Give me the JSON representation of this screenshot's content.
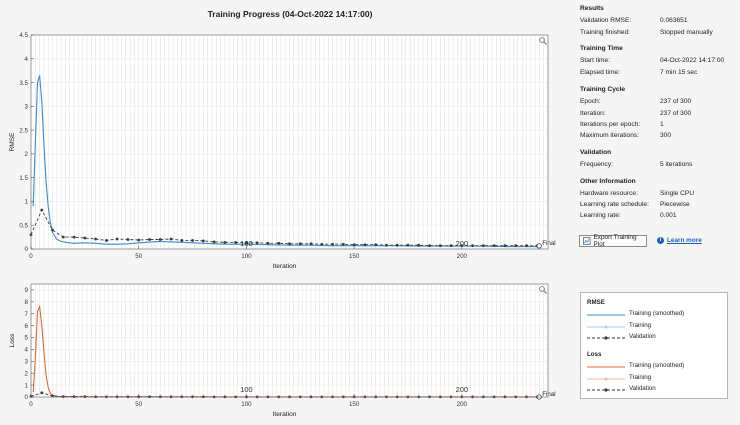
{
  "title": "Training Progress (04-Oct-2022 14:17:00)",
  "colors": {
    "training": "#3b8fd1",
    "training_raw": "#a9cde9",
    "validation": "#3a3a3a",
    "loss": "#e06a3b",
    "loss_raw": "#f3b8a0"
  },
  "icons": {
    "export": "export-plot-icon",
    "help": "help-icon",
    "zoom": "magnifier-icon"
  },
  "panel": {
    "results": {
      "title": "Results",
      "rows": [
        {
          "label": "Validation RMSE:",
          "value": "0.063651"
        },
        {
          "label": "Training finished:",
          "value": "Stopped manually"
        }
      ]
    },
    "time": {
      "title": "Training Time",
      "rows": [
        {
          "label": "Start time:",
          "value": "04-Oct-2022 14:17:00"
        },
        {
          "label": "Elapsed time:",
          "value": "7 min 15 sec"
        }
      ]
    },
    "cycle": {
      "title": "Training Cycle",
      "rows": [
        {
          "label": "Epoch:",
          "value": "237 of 300"
        },
        {
          "label": "Iteration:",
          "value": "237 of 300"
        },
        {
          "label": "Iterations per epoch:",
          "value": "1"
        },
        {
          "label": "Maximum iterations:",
          "value": "300"
        }
      ]
    },
    "validation": {
      "title": "Validation",
      "rows": [
        {
          "label": "Frequency:",
          "value": "5 iterations"
        }
      ]
    },
    "other": {
      "title": "Other Information",
      "rows": [
        {
          "label": "Hardware resource:",
          "value": "Single CPU"
        },
        {
          "label": "Learning rate schedule:",
          "value": "Piecewise"
        },
        {
          "label": "Learning rate:",
          "value": "0.001"
        }
      ]
    },
    "export_label": "Export Training Plot",
    "learn_more": "Learn more"
  },
  "legend": {
    "rmse_title": "RMSE",
    "loss_title": "Loss",
    "training_smoothed": "Training (smoothed)",
    "training": "Training",
    "validation": "Validation"
  },
  "chart_data": [
    {
      "type": "line",
      "ylabel": "RMSE",
      "xlabel": "Iteration",
      "xlim": [
        0,
        240
      ],
      "ylim": [
        0,
        4.5
      ],
      "x_ticks": [
        0,
        50,
        100,
        150,
        200
      ],
      "y_ticks": [
        0,
        0.5,
        1,
        1.5,
        2,
        2.5,
        3,
        3.5,
        4,
        4.5
      ],
      "epoch_markers": [
        {
          "x": 100,
          "label": "100"
        },
        {
          "x": 200,
          "label": "200"
        }
      ],
      "final_label": "Final",
      "grid": true,
      "series": [
        {
          "name": "Training (smoothed)",
          "x": [
            1,
            2,
            3,
            4,
            5,
            6,
            7,
            8,
            9,
            10,
            12,
            14,
            16,
            18,
            20,
            25,
            30,
            35,
            40,
            45,
            50,
            60,
            70,
            80,
            90,
            100,
            110,
            120,
            130,
            140,
            150,
            160,
            170,
            180,
            190,
            200,
            210,
            220,
            230,
            237
          ],
          "values": [
            0.9,
            2.2,
            3.5,
            3.65,
            3.1,
            2.2,
            1.4,
            0.9,
            0.55,
            0.35,
            0.2,
            0.16,
            0.14,
            0.13,
            0.12,
            0.13,
            0.12,
            0.1,
            0.1,
            0.11,
            0.13,
            0.16,
            0.14,
            0.12,
            0.1,
            0.1,
            0.09,
            0.08,
            0.08,
            0.07,
            0.07,
            0.07,
            0.07,
            0.06,
            0.06,
            0.06,
            0.06,
            0.05,
            0.05,
            0.05
          ]
        },
        {
          "name": "Validation",
          "x": [
            0,
            5,
            10,
            15,
            20,
            25,
            30,
            35,
            40,
            45,
            50,
            55,
            60,
            65,
            70,
            75,
            80,
            85,
            90,
            95,
            100,
            105,
            110,
            115,
            120,
            125,
            130,
            135,
            140,
            145,
            150,
            155,
            160,
            165,
            170,
            175,
            180,
            185,
            190,
            195,
            200,
            205,
            210,
            215,
            220,
            225,
            230,
            235
          ],
          "values": [
            0.3,
            0.82,
            0.4,
            0.25,
            0.25,
            0.23,
            0.21,
            0.18,
            0.21,
            0.2,
            0.19,
            0.2,
            0.2,
            0.21,
            0.18,
            0.18,
            0.17,
            0.15,
            0.14,
            0.14,
            0.13,
            0.13,
            0.12,
            0.12,
            0.11,
            0.11,
            0.11,
            0.1,
            0.1,
            0.1,
            0.09,
            0.09,
            0.09,
            0.08,
            0.08,
            0.08,
            0.08,
            0.07,
            0.07,
            0.07,
            0.07,
            0.07,
            0.07,
            0.07,
            0.07,
            0.07,
            0.07,
            0.065
          ]
        }
      ]
    },
    {
      "type": "line",
      "ylabel": "Loss",
      "xlabel": "Iteration",
      "xlim": [
        0,
        240
      ],
      "ylim": [
        0,
        9.5
      ],
      "x_ticks": [
        0,
        50,
        100,
        150,
        200
      ],
      "y_ticks": [
        0,
        1,
        2,
        3,
        4,
        5,
        6,
        7,
        8,
        9
      ],
      "epoch_markers": [
        {
          "x": 100,
          "label": "100"
        },
        {
          "x": 200,
          "label": "200"
        }
      ],
      "final_label": "Final",
      "grid": true,
      "series": [
        {
          "name": "Training (smoothed)",
          "x": [
            1,
            2,
            3,
            4,
            5,
            6,
            7,
            8,
            9,
            10,
            12,
            15,
            20,
            30,
            50,
            100,
            150,
            200,
            237
          ],
          "values": [
            0.4,
            3.2,
            7.2,
            7.6,
            6.0,
            3.8,
            1.8,
            0.8,
            0.3,
            0.15,
            0.05,
            0.03,
            0.02,
            0.02,
            0.02,
            0.01,
            0.01,
            0.005,
            0.005
          ]
        },
        {
          "name": "Validation",
          "x": [
            0,
            5,
            10,
            15,
            20,
            25,
            30,
            35,
            40,
            45,
            50,
            55,
            60,
            65,
            70,
            75,
            80,
            85,
            90,
            95,
            100,
            105,
            110,
            115,
            120,
            125,
            130,
            135,
            140,
            145,
            150,
            155,
            160,
            165,
            170,
            175,
            180,
            185,
            190,
            195,
            200,
            205,
            210,
            215,
            220,
            225,
            230,
            235
          ],
          "values": [
            0.05,
            0.35,
            0.08,
            0.03,
            0.03,
            0.03,
            0.02,
            0.02,
            0.02,
            0.02,
            0.02,
            0.02,
            0.02,
            0.02,
            0.02,
            0.02,
            0.02,
            0.01,
            0.01,
            0.01,
            0.01,
            0.01,
            0.01,
            0.01,
            0.01,
            0.01,
            0.01,
            0.01,
            0.01,
            0.01,
            0.01,
            0.01,
            0.01,
            0.01,
            0.01,
            0.01,
            0.01,
            0.01,
            0.01,
            0.01,
            0.01,
            0.01,
            0.01,
            0.01,
            0.01,
            0.01,
            0.01,
            0.005
          ]
        }
      ]
    }
  ]
}
